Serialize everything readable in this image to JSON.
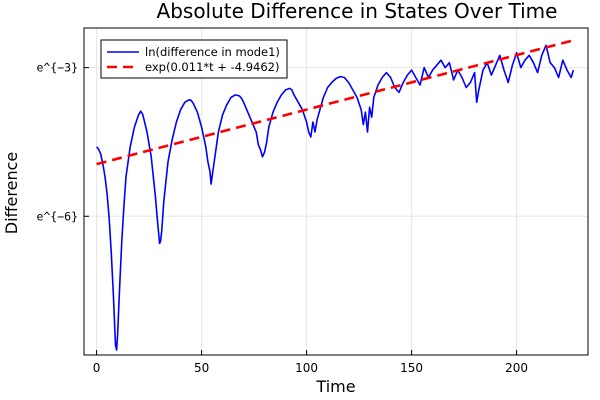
{
  "chart_data": {
    "type": "line",
    "title": "Absolute Difference in States Over Time",
    "xlabel": "Time",
    "ylabel": "Difference",
    "xlim": [
      -6,
      234
    ],
    "ylim": [
      -8.8,
      -2.2
    ],
    "x_ticks": [
      0,
      50,
      100,
      150,
      200
    ],
    "x_tick_labels": [
      "0",
      "50",
      "100",
      "150",
      "200"
    ],
    "y_ticks": [
      -3,
      -6
    ],
    "y_tick_labels": [
      "e^{−3}",
      "e^{−6}"
    ],
    "grid": true,
    "legend_position": "top-left",
    "series": [
      {
        "name": "ln(difference in mode1)",
        "color": "#0000ff",
        "style": "solid",
        "x": [
          0,
          1,
          2,
          3,
          4,
          5,
          6,
          7,
          8,
          9,
          9.5,
          10,
          11,
          12,
          13,
          14,
          16,
          18,
          20,
          21,
          22,
          24,
          26,
          28,
          29,
          30,
          30.5,
          31,
          32,
          34,
          36,
          38,
          40,
          42,
          44,
          45,
          46,
          48,
          50,
          52,
          53,
          54,
          54.5,
          55,
          56,
          58,
          60,
          62,
          64,
          66,
          68,
          69,
          70,
          72,
          74,
          76,
          77,
          78,
          79,
          80,
          81,
          82,
          84,
          86,
          88,
          90,
          92,
          93,
          94,
          96,
          98,
          100,
          101,
          102,
          103,
          104,
          105,
          106,
          108,
          110,
          112,
          114,
          116,
          118,
          120,
          122,
          124,
          126,
          127,
          128,
          129,
          130,
          131,
          132,
          134,
          136,
          138,
          140,
          142,
          144,
          146,
          148,
          150,
          152,
          154,
          156,
          158,
          160,
          162,
          164,
          166,
          168,
          170,
          172,
          174,
          176,
          178,
          180,
          181,
          182,
          184,
          186,
          188,
          190,
          192,
          194,
          196,
          198,
          200,
          202,
          204,
          206,
          208,
          210,
          212,
          214,
          216,
          218,
          220,
          222,
          224,
          226,
          227
        ],
        "y": [
          -4.6,
          -4.65,
          -4.75,
          -4.95,
          -5.2,
          -5.55,
          -6.05,
          -6.75,
          -7.6,
          -8.6,
          -8.7,
          -8.4,
          -7.4,
          -6.5,
          -5.8,
          -5.2,
          -4.6,
          -4.2,
          -3.95,
          -3.88,
          -3.95,
          -4.3,
          -4.8,
          -5.6,
          -6.1,
          -6.55,
          -6.5,
          -6.3,
          -5.7,
          -4.9,
          -4.45,
          -4.1,
          -3.85,
          -3.7,
          -3.65,
          -3.66,
          -3.72,
          -3.9,
          -4.2,
          -4.6,
          -4.9,
          -5.1,
          -5.35,
          -5.2,
          -4.9,
          -4.3,
          -3.95,
          -3.75,
          -3.6,
          -3.55,
          -3.57,
          -3.62,
          -3.7,
          -3.9,
          -4.1,
          -4.3,
          -4.55,
          -4.65,
          -4.8,
          -4.7,
          -4.5,
          -4.2,
          -3.9,
          -3.7,
          -3.55,
          -3.45,
          -3.42,
          -3.45,
          -3.55,
          -3.7,
          -3.85,
          -4.1,
          -4.3,
          -4.4,
          -4.1,
          -4.3,
          -4.05,
          -3.9,
          -3.6,
          -3.4,
          -3.3,
          -3.22,
          -3.18,
          -3.2,
          -3.3,
          -3.45,
          -3.6,
          -3.85,
          -4.15,
          -3.9,
          -4.3,
          -3.8,
          -4.0,
          -3.6,
          -3.35,
          -3.2,
          -3.1,
          -3.2,
          -3.4,
          -3.5,
          -3.3,
          -3.15,
          -3.05,
          -3.2,
          -3.35,
          -3.0,
          -3.2,
          -3.05,
          -2.95,
          -2.85,
          -3.0,
          -2.9,
          -3.25,
          -3.05,
          -3.2,
          -3.4,
          -3.3,
          -3.1,
          -3.7,
          -3.45,
          -3.05,
          -2.9,
          -3.15,
          -2.95,
          -2.75,
          -3.05,
          -3.3,
          -2.95,
          -2.7,
          -3.0,
          -2.85,
          -2.75,
          -2.9,
          -3.1,
          -2.75,
          -2.55,
          -2.9,
          -3.0,
          -3.2,
          -2.85,
          -3.05,
          -3.2,
          -3.05
        ]
      },
      {
        "name": "exp(0.011*t + -4.9462)",
        "color": "#ff0000",
        "style": "dashed",
        "x": [
          0,
          226
        ],
        "y": [
          -4.9462,
          -2.4602
        ]
      }
    ]
  }
}
